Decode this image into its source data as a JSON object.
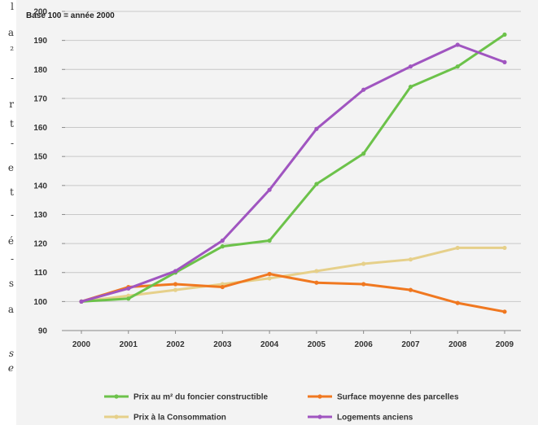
{
  "margin_text": [
    "l",
    "a",
    "²",
    "-",
    "r",
    "t",
    "-",
    "e",
    "t",
    "-",
    "é",
    "-",
    "s",
    "a",
    "s",
    "e"
  ],
  "chart_data": {
    "type": "line",
    "title": "",
    "annotation": "Base 100 = année 2000",
    "xlabel": "",
    "ylabel": "",
    "x": [
      "2000",
      "2001",
      "2002",
      "2003",
      "2004",
      "2005",
      "2006",
      "2007",
      "2008",
      "2009"
    ],
    "ylim": [
      90,
      200
    ],
    "yticks": [
      90,
      100,
      110,
      120,
      130,
      140,
      150,
      160,
      170,
      180,
      190,
      200
    ],
    "grid": true,
    "legend_position": "bottom",
    "series": [
      {
        "name": "Prix au m² du foncier constructible",
        "color": "#6cc24a",
        "values": [
          100,
          101,
          110,
          119,
          121,
          140.5,
          151,
          174,
          181,
          192
        ]
      },
      {
        "name": "Surface moyenne des parcelles",
        "color": "#f07820",
        "values": [
          100,
          105,
          106,
          105,
          109.5,
          106.5,
          106,
          104,
          99.5,
          96.5
        ]
      },
      {
        "name": "Prix à la Consommation",
        "color": "#e6d08a",
        "values": [
          100,
          102,
          104,
          106,
          108,
          110.5,
          113,
          114.5,
          118.5,
          118.5
        ]
      },
      {
        "name": "Logements anciens",
        "color": "#a055c0",
        "values": [
          100,
          104.5,
          110.5,
          121,
          138.5,
          159.5,
          173,
          181,
          188.5,
          182.5
        ]
      }
    ]
  }
}
